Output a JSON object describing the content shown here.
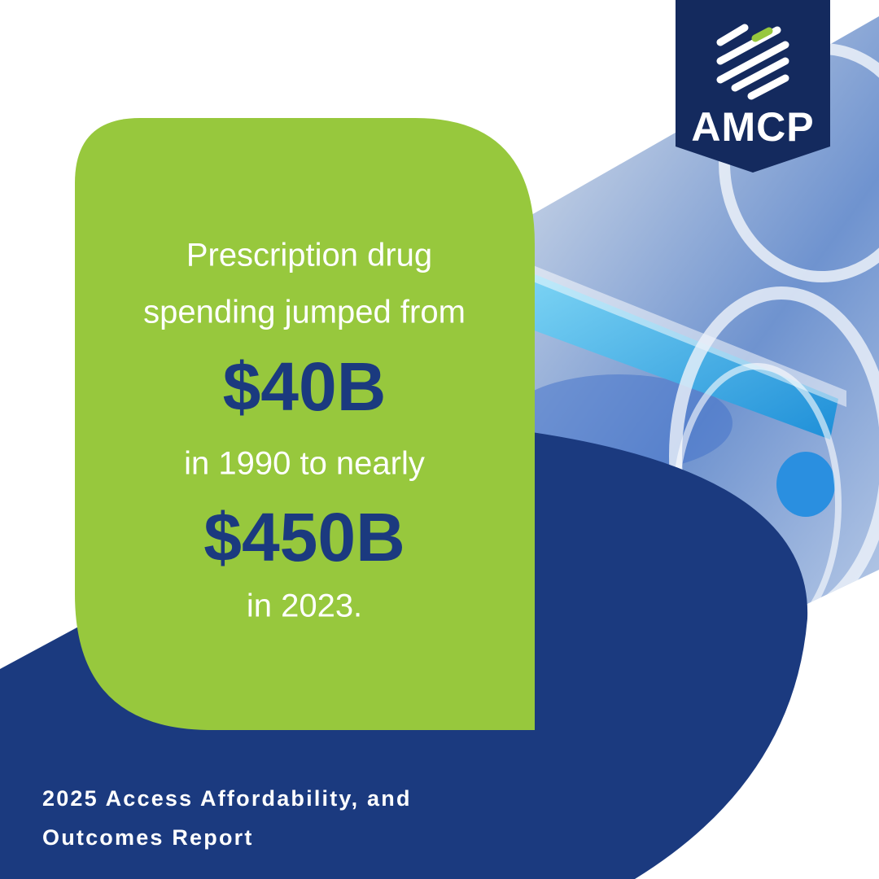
{
  "logo": {
    "text": "AMCP"
  },
  "statement": {
    "lines": [
      "Prescription drug",
      "spending jumped from",
      "$40B",
      "in 1990 to nearly",
      "$450B",
      "in 2023."
    ]
  },
  "footer": {
    "lines": [
      "2025 Access Affordability, and",
      "Outcomes Report"
    ]
  }
}
